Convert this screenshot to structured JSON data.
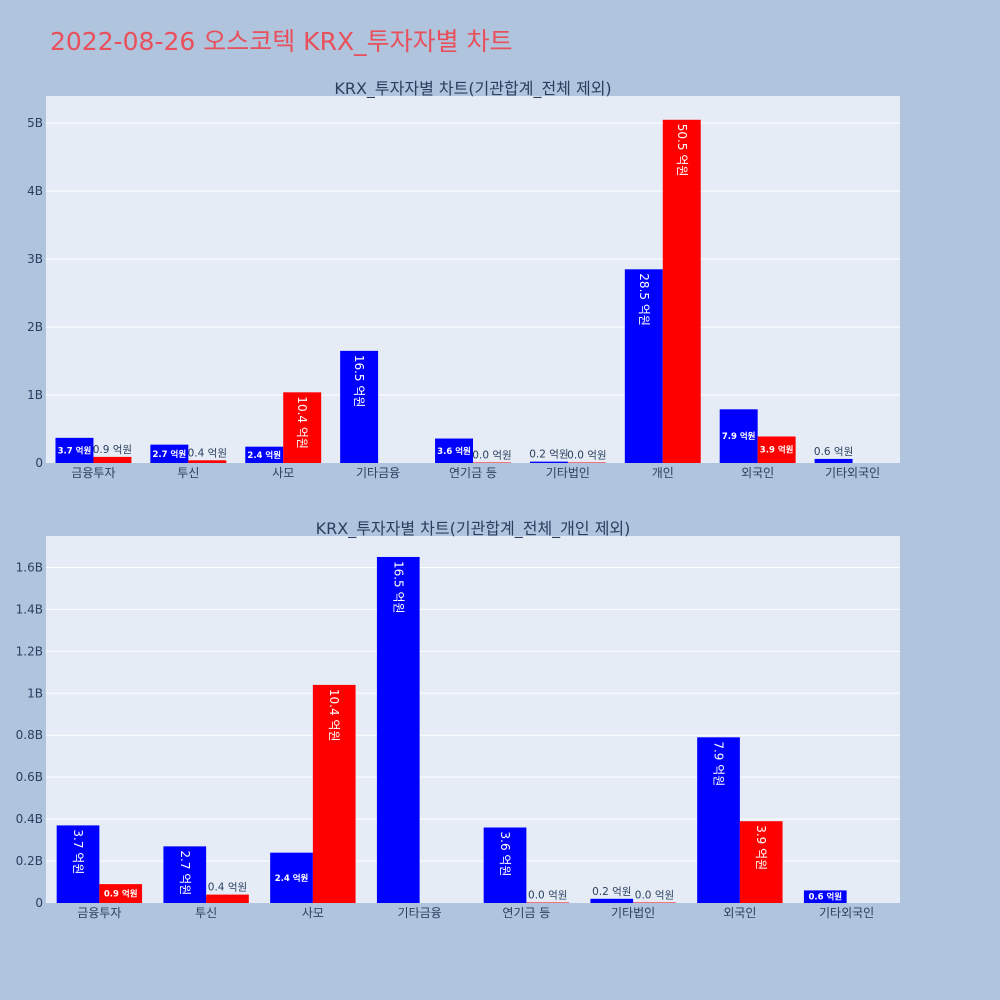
{
  "title": "2022-08-26 오스코텍 KRX_투자자별 차트",
  "colors": {
    "buy": "#0000ff",
    "sell": "#ff0000",
    "title": "#e8505b",
    "background": "#b0c4de",
    "plot": "#e5ecf6"
  },
  "chart_data": [
    {
      "type": "bar",
      "title": "KRX_투자자별 차트(기관합계_전체 제외)",
      "categories": [
        "금융투자",
        "투신",
        "사모",
        "기타금융",
        "연기금 등",
        "기타법인",
        "개인",
        "외국인",
        "기타외국인"
      ],
      "series": [
        {
          "color": "#0000ff",
          "values": [
            370000000,
            270000000,
            240000000,
            1650000000,
            360000000,
            20000000,
            2850000000,
            790000000,
            60000000
          ],
          "labels": [
            "3.7 억원",
            "2.7 억원",
            "2.4 억원",
            "16.5 억원",
            "3.6 억원",
            "0.2 억원",
            "28.5 억원",
            "7.9 억원",
            "0.6 억원"
          ]
        },
        {
          "color": "#ff0000",
          "values": [
            90000000,
            40000000,
            1040000000,
            null,
            0,
            0,
            5050000000,
            390000000,
            null
          ],
          "labels": [
            "0.9 억원",
            "0.4 억원",
            "10.4 억원",
            null,
            "0.0 억원",
            "0.0 억원",
            "50.5 억원",
            "3.9 억원",
            null
          ]
        }
      ],
      "yticks": [
        0,
        1000000000,
        2000000000,
        3000000000,
        4000000000,
        5000000000
      ],
      "ytick_labels": [
        "0",
        "1B",
        "2B",
        "3B",
        "4B",
        "5B"
      ],
      "ylim": [
        0,
        5400000000
      ],
      "grid": true
    },
    {
      "type": "bar",
      "title": "KRX_투자자별 차트(기관합계_전체_개인 제외)",
      "categories": [
        "금융투자",
        "투신",
        "사모",
        "기타금융",
        "연기금 등",
        "기타법인",
        "외국인",
        "기타외국인"
      ],
      "series": [
        {
          "color": "#0000ff",
          "values": [
            370000000,
            270000000,
            240000000,
            1650000000,
            360000000,
            20000000,
            790000000,
            60000000
          ],
          "labels": [
            "3.7 억원",
            "2.7 억원",
            "2.4 억원",
            "16.5 억원",
            "3.6 억원",
            "0.2 억원",
            "7.9 억원",
            "0.6 억원"
          ]
        },
        {
          "color": "#ff0000",
          "values": [
            90000000,
            40000000,
            1040000000,
            null,
            0,
            0,
            390000000,
            null
          ],
          "labels": [
            "0.9 억원",
            "0.4 억원",
            "10.4 억원",
            null,
            "0.0 억원",
            "0.0 억원",
            "3.9 억원",
            null
          ]
        }
      ],
      "yticks": [
        0,
        200000000,
        400000000,
        600000000,
        800000000,
        1000000000,
        1200000000,
        1400000000,
        1600000000
      ],
      "ytick_labels": [
        "0",
        "0.2B",
        "0.4B",
        "0.6B",
        "0.8B",
        "1B",
        "1.2B",
        "1.4B",
        "1.6B"
      ],
      "ylim": [
        0,
        1750000000
      ],
      "grid": true
    }
  ]
}
